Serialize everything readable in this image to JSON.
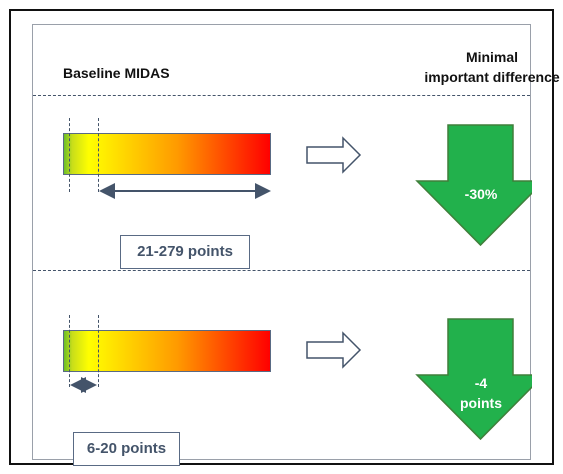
{
  "headers": {
    "baseline": "Baseline MIDAS",
    "mid_line1": "Minimal",
    "mid_line2": "important difference"
  },
  "rows": [
    {
      "range_label": "21-279 points",
      "difference_label": "-30%"
    },
    {
      "range_label": "6-20 points",
      "difference_label_line1": "-4",
      "difference_label_line2": "points"
    }
  ],
  "colors": {
    "arrow_fill": "#22b14c",
    "arrow_stroke": "#3f7f3a",
    "line": "#44546a",
    "gradient_start": "#6cbf28",
    "gradient_end": "#ff0000"
  },
  "icons": [
    "right-outline-arrow-icon",
    "down-block-arrow-icon",
    "double-headed-arrow-icon"
  ]
}
